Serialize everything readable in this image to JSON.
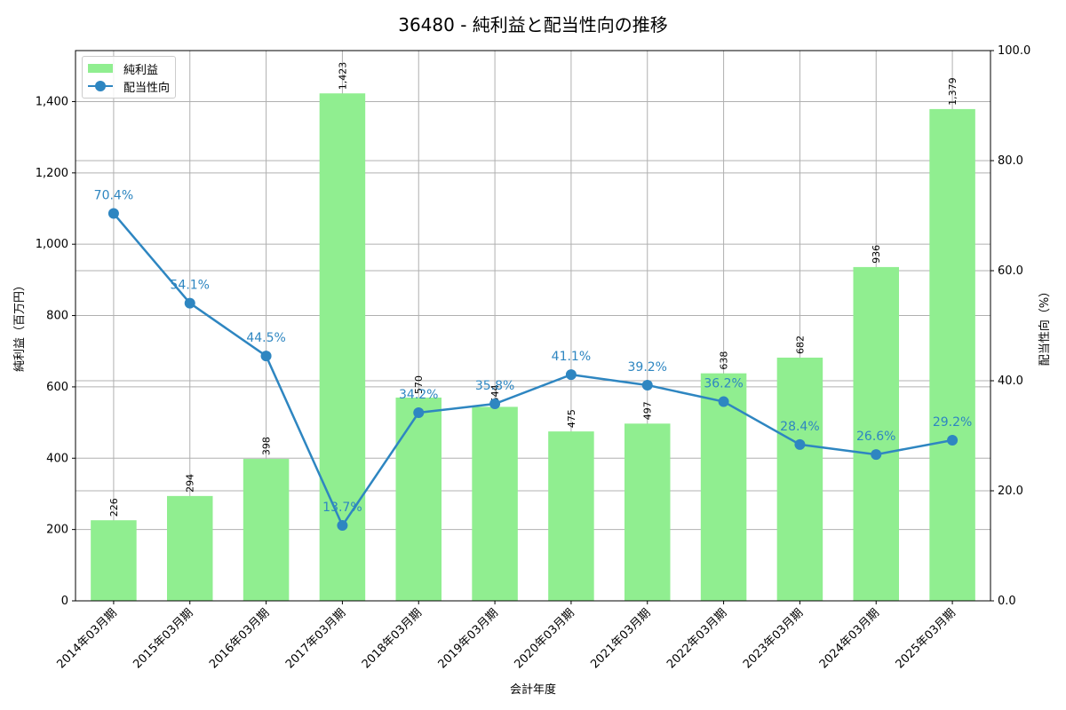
{
  "title": "36480 - 純利益と配当性向の推移",
  "legend": {
    "bar_label": "純利益",
    "line_label": "配当性向"
  },
  "colors": {
    "bar": "#90ee90",
    "line": "#2e86c1",
    "grid": "#b0b0b0"
  },
  "chart_data": {
    "type": "bar+line",
    "title": "36480 - 純利益と配当性向の推移",
    "xlabel": "会計年度",
    "ylabel": "純利益（百万円）",
    "y2label": "配当性向（%）",
    "categories": [
      "2014年03月期",
      "2015年03月期",
      "2016年03月期",
      "2017年03月期",
      "2018年03月期",
      "2019年03月期",
      "2020年03月期",
      "2021年03月期",
      "2022年03月期",
      "2023年03月期",
      "2024年03月期",
      "2025年03月期"
    ],
    "series": [
      {
        "name": "純利益",
        "type": "bar",
        "axis": "left",
        "values": [
          226,
          294,
          398,
          1423,
          570,
          544,
          475,
          497,
          638,
          682,
          936,
          1379
        ],
        "labels": [
          "226",
          "294",
          "398",
          "1,423",
          "570",
          "544",
          "475",
          "497",
          "638",
          "682",
          "936",
          "1,379"
        ]
      },
      {
        "name": "配当性向",
        "type": "line",
        "axis": "right",
        "values": [
          70.4,
          54.1,
          44.5,
          13.7,
          34.2,
          35.8,
          41.1,
          39.2,
          36.2,
          28.4,
          26.6,
          29.2
        ],
        "labels": [
          "70.4%",
          "54.1%",
          "44.5%",
          "13.7%",
          "34.2%",
          "35.8%",
          "41.1%",
          "39.2%",
          "36.2%",
          "28.4%",
          "26.6%",
          "29.2%"
        ]
      }
    ],
    "ylim": [
      0,
      1543
    ],
    "y2lim": [
      0,
      100
    ],
    "yticks": [
      "0",
      "200",
      "400",
      "600",
      "800",
      "1,000",
      "1,200",
      "1,400"
    ],
    "y2ticks": [
      "0.0",
      "20.0",
      "40.0",
      "60.0",
      "80.0",
      "100.0"
    ],
    "grid": true,
    "legend_position": "upper left"
  }
}
